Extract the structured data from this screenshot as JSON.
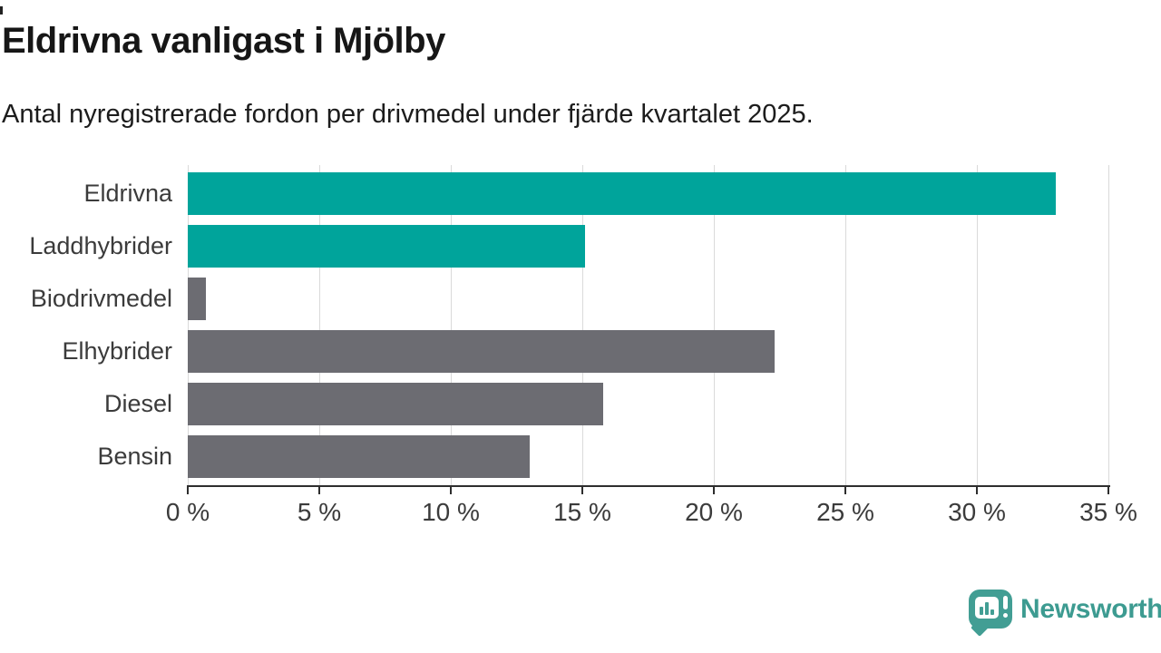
{
  "header": {
    "title": "Eldrivna vanligast i Mjölby",
    "subtitle": "Antal nyregistrerade fordon per drivmedel under fjärde kvartalet 2025."
  },
  "chart_data": {
    "type": "bar",
    "orientation": "horizontal",
    "title": "Eldrivna vanligast i Mjölby",
    "subtitle": "Antal nyregistrerade fordon per drivmedel under fjärde kvartalet 2025.",
    "categories": [
      "Eldrivna",
      "Laddhybrider",
      "Biodrivmedel",
      "Elhybrider",
      "Diesel",
      "Bensin"
    ],
    "values": [
      33.0,
      15.1,
      0.7,
      22.3,
      15.8,
      13.0
    ],
    "unit": "%",
    "xlim": [
      0,
      35
    ],
    "x_ticks": [
      0,
      5,
      10,
      15,
      20,
      25,
      30,
      35
    ],
    "x_tick_labels": [
      "0 %",
      "5 %",
      "10 %",
      "15 %",
      "20 %",
      "25 %",
      "30 %",
      "35 %"
    ],
    "bar_colors": [
      "#00a49b",
      "#00a49b",
      "#6c6c72",
      "#6c6c72",
      "#6c6c72",
      "#6c6c72"
    ],
    "highlight_color": "#00a49b",
    "default_color": "#6c6c72",
    "grid": "vertical-gridlines",
    "gridline_color": "#dadada",
    "axis_color": "#2e2e2e",
    "legend": "none"
  },
  "footer": {
    "brand": "Newsworthy",
    "brand_color": "#3d9b91",
    "logo_icon": "newsworthy-speech-bubble-bar-chart-icon"
  }
}
